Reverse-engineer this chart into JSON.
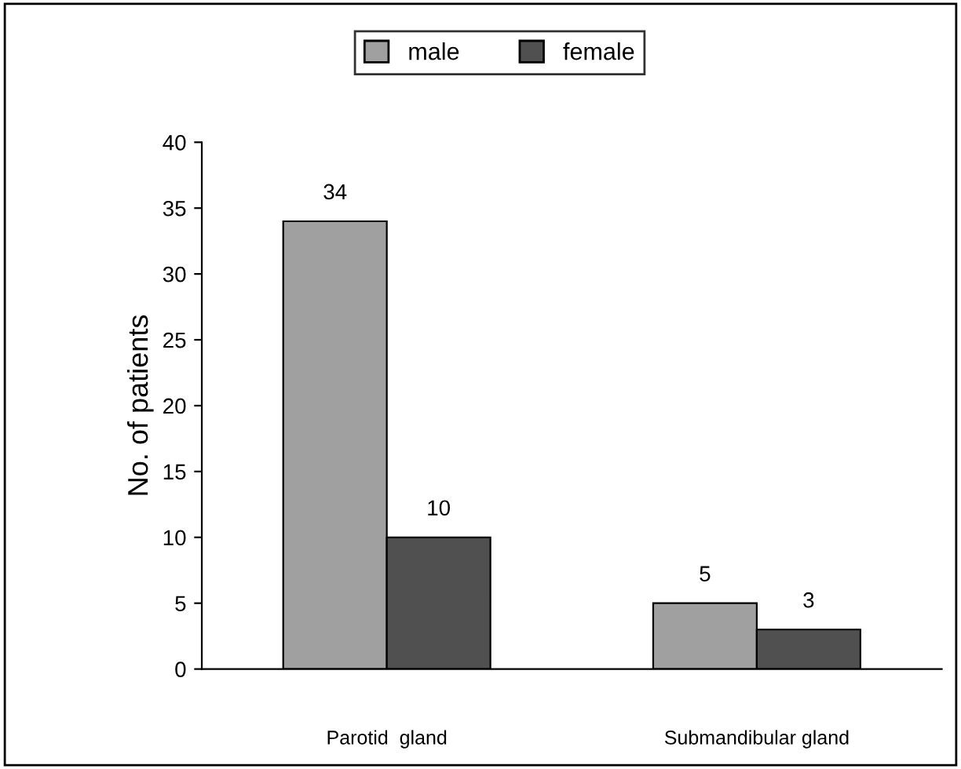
{
  "chart_data": {
    "type": "bar",
    "ylabel": "No. of patients",
    "categories": [
      "Parotid  gland",
      "Submandibular gland"
    ],
    "series": [
      {
        "name": "male",
        "color": "#a0a0a0",
        "values": [
          34,
          5
        ]
      },
      {
        "name": "female",
        "color": "#505050",
        "values": [
          10,
          3
        ]
      }
    ],
    "ylim": [
      0,
      40
    ],
    "yticks": [
      0,
      5,
      10,
      15,
      20,
      25,
      30,
      35,
      40
    ],
    "data_labels": true,
    "grid": false,
    "legend": "top"
  }
}
